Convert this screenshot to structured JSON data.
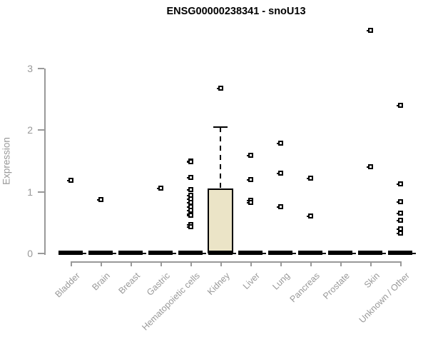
{
  "page": {
    "background": "#ffffff"
  },
  "chart_data": {
    "type": "boxplot",
    "title": "ENSG00000238341 - snoU13",
    "xlabel": "",
    "ylabel": "Expression",
    "yticks": [
      0,
      1,
      2,
      3
    ],
    "ylim": [
      0,
      3.75
    ],
    "grid": false,
    "legend": "none",
    "categories": [
      "Bladder",
      "Brain",
      "Breast",
      "Gastric",
      "Hematopoietic cells",
      "Kidney",
      "Liver",
      "Lung",
      "Pancreas",
      "Prostate",
      "Skin",
      "Unknown / Other"
    ],
    "series": [
      {
        "category": "Bladder",
        "median": 0,
        "q1": 0,
        "q3": 0,
        "whisker_low": 0,
        "whisker_high": 0,
        "outliers": [
          1.19
        ]
      },
      {
        "category": "Brain",
        "median": 0,
        "q1": 0,
        "q3": 0,
        "whisker_low": 0,
        "whisker_high": 0,
        "outliers": [
          0.88
        ]
      },
      {
        "category": "Breast",
        "median": 0,
        "q1": 0,
        "q3": 0,
        "whisker_low": 0,
        "whisker_high": 0,
        "outliers": []
      },
      {
        "category": "Gastric",
        "median": 0,
        "q1": 0,
        "q3": 0,
        "whisker_low": 0,
        "whisker_high": 0,
        "outliers": [
          1.07
        ]
      },
      {
        "category": "Hematopoietic cells",
        "median": 0,
        "q1": 0,
        "q3": 0,
        "whisker_low": 0,
        "whisker_high": 0,
        "outliers": [
          1.51,
          1.49,
          1.24,
          1.04,
          0.95,
          0.89,
          0.83,
          0.77,
          0.71,
          0.65,
          0.62,
          0.47,
          0.44
        ]
      },
      {
        "category": "Kidney",
        "median": 0,
        "q1": 0,
        "q3": 1.05,
        "whisker_low": 0,
        "whisker_high": 2.05,
        "outliers": [
          2.69
        ]
      },
      {
        "category": "Liver",
        "median": 0,
        "q1": 0,
        "q3": 0,
        "whisker_low": 0,
        "whisker_high": 0,
        "outliers": [
          1.6,
          1.2,
          0.87,
          0.83
        ]
      },
      {
        "category": "Lung",
        "median": 0,
        "q1": 0,
        "q3": 0,
        "whisker_low": 0,
        "whisker_high": 0,
        "outliers": [
          1.8,
          1.31,
          0.76
        ]
      },
      {
        "category": "Pancreas",
        "median": 0,
        "q1": 0,
        "q3": 0,
        "whisker_low": 0,
        "whisker_high": 0,
        "outliers": [
          1.23,
          0.61
        ]
      },
      {
        "category": "Prostate",
        "median": 0,
        "q1": 0,
        "q3": 0,
        "whisker_low": 0,
        "whisker_high": 0,
        "outliers": []
      },
      {
        "category": "Skin",
        "median": 0,
        "q1": 0,
        "q3": 0,
        "whisker_low": 0,
        "whisker_high": 0,
        "outliers": [
          3.63,
          1.41
        ]
      },
      {
        "category": "Unknown / Other",
        "median": 0,
        "q1": 0,
        "q3": 0,
        "whisker_low": 0,
        "whisker_high": 0,
        "outliers": [
          2.41,
          1.14,
          0.85,
          0.66,
          0.54,
          0.41,
          0.34
        ]
      }
    ],
    "colors": {
      "box_fill": "#ebe4c7",
      "box_border": "#000000",
      "median": "#000000",
      "point": "#000000",
      "axis": "#999999",
      "tick_label": "#999999",
      "title": "#000000"
    }
  }
}
